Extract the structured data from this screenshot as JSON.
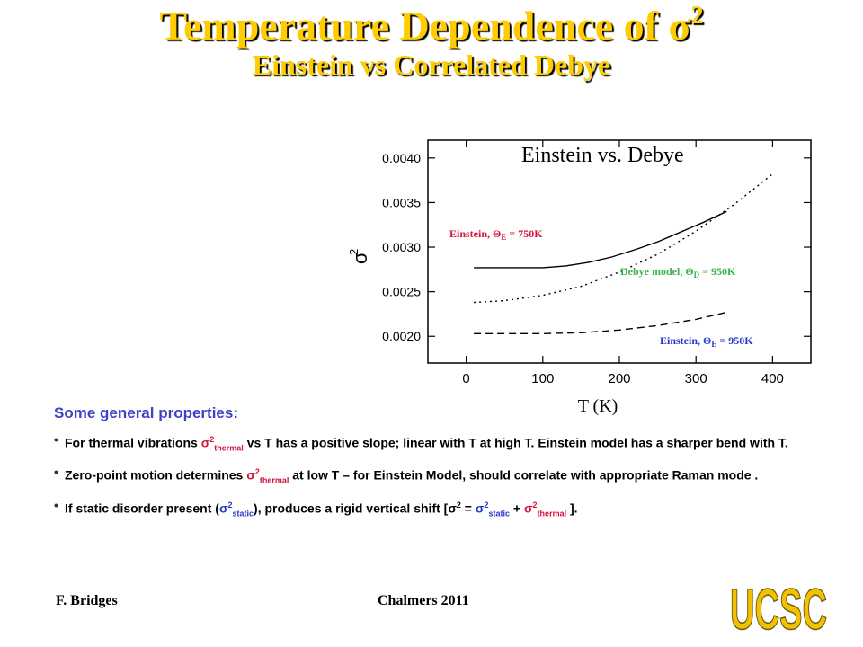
{
  "title": {
    "line1": "Temperature Dependence of σ",
    "line1_sup": "2",
    "line2": "Einstein vs Correlated Debye"
  },
  "chart_data": {
    "type": "line",
    "title": "Einstein vs. Debye",
    "xlabel": "T (K)",
    "ylabel": "σ",
    "ylabel_sup": "2",
    "xlim": [
      -50,
      450
    ],
    "ylim": [
      0.0017,
      0.0042
    ],
    "xticks": [
      0,
      100,
      200,
      300,
      400
    ],
    "yticks": [
      0.002,
      0.0025,
      0.003,
      0.0035,
      0.004
    ],
    "xtick_labels": [
      "0",
      "100",
      "200",
      "300",
      "400"
    ],
    "ytick_labels": [
      "0.0020",
      "0.0025",
      "0.0030",
      "0.0035",
      "0.0040"
    ],
    "series": [
      {
        "name": "Einstein, Θ_E = 750K",
        "label_main": "Einstein, Θ",
        "label_sub": "E",
        "label_rest": " = 750K",
        "color": "#d4143c",
        "style": "solid",
        "x": [
          10,
          50,
          100,
          130,
          160,
          190,
          220,
          250,
          280,
          310,
          340
        ],
        "y": [
          0.00277,
          0.00277,
          0.00277,
          0.00279,
          0.00283,
          0.00289,
          0.00297,
          0.00306,
          0.00317,
          0.00328,
          0.0034
        ]
      },
      {
        "name": "Debye model, Θ_D = 950K",
        "label_main": "Debye model, Θ",
        "label_sub": "D",
        "label_rest": " = 950K",
        "color": "#3cb44b",
        "style": "dotted",
        "x": [
          10,
          50,
          100,
          150,
          200,
          250,
          300,
          350,
          400
        ],
        "y": [
          0.00238,
          0.0024,
          0.00246,
          0.00256,
          0.00272,
          0.00292,
          0.00318,
          0.00348,
          0.00382
        ]
      },
      {
        "name": "Einstein, Θ_E = 950K",
        "label_main": "Einstein, Θ",
        "label_sub": "E",
        "label_rest": " = 950K",
        "color": "#2838c8",
        "style": "dashed",
        "x": [
          10,
          60,
          100,
          150,
          200,
          250,
          300,
          340
        ],
        "y": [
          0.00203,
          0.00203,
          0.00203,
          0.00204,
          0.00207,
          0.00212,
          0.00219,
          0.00227
        ]
      }
    ]
  },
  "properties": {
    "heading": "Some general properties:",
    "bullets": [
      {
        "parts": [
          {
            "t": "For thermal vibrations "
          },
          {
            "t": "σ",
            "c": "red"
          },
          {
            "t": "2",
            "c": "red",
            "sup": true
          },
          {
            "t": "thermal",
            "c": "red",
            "sub": true
          },
          {
            "t": " vs T has a positive slope; linear with T at high T.     Einstein model has a sharper bend with T."
          }
        ]
      },
      {
        "parts": [
          {
            "t": "Zero-point motion determines "
          },
          {
            "t": "σ",
            "c": "red"
          },
          {
            "t": "2",
            "c": "red",
            "sup": true
          },
          {
            "t": "thermal",
            "c": "red",
            "sub": true
          },
          {
            "t": " at low T – for Einstein Model, should correlate with appropriate Raman mode ."
          }
        ]
      },
      {
        "parts": [
          {
            "t": "If static disorder present ("
          },
          {
            "t": "σ",
            "c": "blue"
          },
          {
            "t": "2",
            "c": "blue",
            "sup": true
          },
          {
            "t": "static",
            "c": "blue",
            "sub": true
          },
          {
            "t": "),   produces a rigid vertical shift   [σ"
          },
          {
            "t": "2",
            "sup": true
          },
          {
            "t": " = "
          },
          {
            "t": "σ",
            "c": "blue"
          },
          {
            "t": "2",
            "c": "blue",
            "sup": true
          },
          {
            "t": "static",
            "c": "blue",
            "sub": true
          },
          {
            "t": " + "
          },
          {
            "t": "σ",
            "c": "red"
          },
          {
            "t": "2",
            "c": "red",
            "sup": true
          },
          {
            "t": "thermal",
            "c": "red",
            "sub": true
          },
          {
            "t": " ]."
          }
        ]
      }
    ]
  },
  "footer": {
    "author": "F. Bridges",
    "event": "Chalmers 2011",
    "logo_text": "UCSC"
  }
}
